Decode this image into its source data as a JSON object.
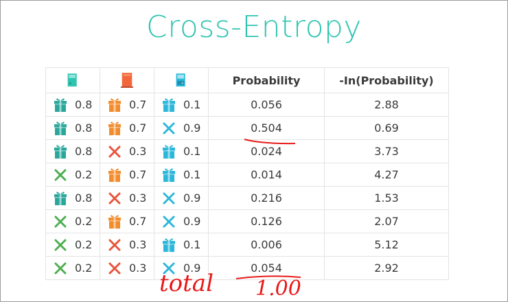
{
  "title": "Cross-Entropy",
  "colors": {
    "teal": "#2ec4b0",
    "orange_red": "#f2663b",
    "light_blue": "#2bb7da",
    "gift_green": "#2aa79b",
    "gift_orange": "#f28c2c",
    "cross_green": "#4cae4f",
    "cross_red": "#e8543a",
    "cross_blue": "#2bb7da",
    "annotation_red": "#e81818"
  },
  "headers": {
    "door_icons": [
      "teal-door-icon",
      "red-door-icon",
      "blue-door-icon"
    ],
    "probability": "Probability",
    "neg_ln": "-In(Probability)"
  },
  "rows": [
    {
      "doors": [
        {
          "icon": "gift",
          "color": "green",
          "value": "0.8"
        },
        {
          "icon": "gift",
          "color": "orange",
          "value": "0.7"
        },
        {
          "icon": "gift",
          "color": "blue",
          "value": "0.1"
        }
      ],
      "probability": "0.056",
      "neg_ln": "2.88"
    },
    {
      "doors": [
        {
          "icon": "gift",
          "color": "green",
          "value": "0.8"
        },
        {
          "icon": "gift",
          "color": "orange",
          "value": "0.7"
        },
        {
          "icon": "cross",
          "color": "blue",
          "value": "0.9"
        }
      ],
      "probability": "0.504",
      "neg_ln": "0.69"
    },
    {
      "doors": [
        {
          "icon": "gift",
          "color": "green",
          "value": "0.8"
        },
        {
          "icon": "cross",
          "color": "red",
          "value": "0.3"
        },
        {
          "icon": "gift",
          "color": "blue",
          "value": "0.1"
        }
      ],
      "probability": "0.024",
      "neg_ln": "3.73"
    },
    {
      "doors": [
        {
          "icon": "cross",
          "color": "green",
          "value": "0.2"
        },
        {
          "icon": "gift",
          "color": "orange",
          "value": "0.7"
        },
        {
          "icon": "gift",
          "color": "blue",
          "value": "0.1"
        }
      ],
      "probability": "0.014",
      "neg_ln": "4.27"
    },
    {
      "doors": [
        {
          "icon": "gift",
          "color": "green",
          "value": "0.8"
        },
        {
          "icon": "cross",
          "color": "red",
          "value": "0.3"
        },
        {
          "icon": "cross",
          "color": "blue",
          "value": "0.9"
        }
      ],
      "probability": "0.216",
      "neg_ln": "1.53"
    },
    {
      "doors": [
        {
          "icon": "cross",
          "color": "green",
          "value": "0.2"
        },
        {
          "icon": "gift",
          "color": "orange",
          "value": "0.7"
        },
        {
          "icon": "cross",
          "color": "blue",
          "value": "0.9"
        }
      ],
      "probability": "0.126",
      "neg_ln": "2.07"
    },
    {
      "doors": [
        {
          "icon": "cross",
          "color": "green",
          "value": "0.2"
        },
        {
          "icon": "cross",
          "color": "red",
          "value": "0.3"
        },
        {
          "icon": "gift",
          "color": "blue",
          "value": "0.1"
        }
      ],
      "probability": "0.006",
      "neg_ln": "5.12"
    },
    {
      "doors": [
        {
          "icon": "cross",
          "color": "green",
          "value": "0.2"
        },
        {
          "icon": "cross",
          "color": "red",
          "value": "0.3"
        },
        {
          "icon": "cross",
          "color": "blue",
          "value": "0.9"
        }
      ],
      "probability": "0.054",
      "neg_ln": "2.92"
    }
  ],
  "annotations": {
    "total_label": "total",
    "total_value": "1.00"
  }
}
